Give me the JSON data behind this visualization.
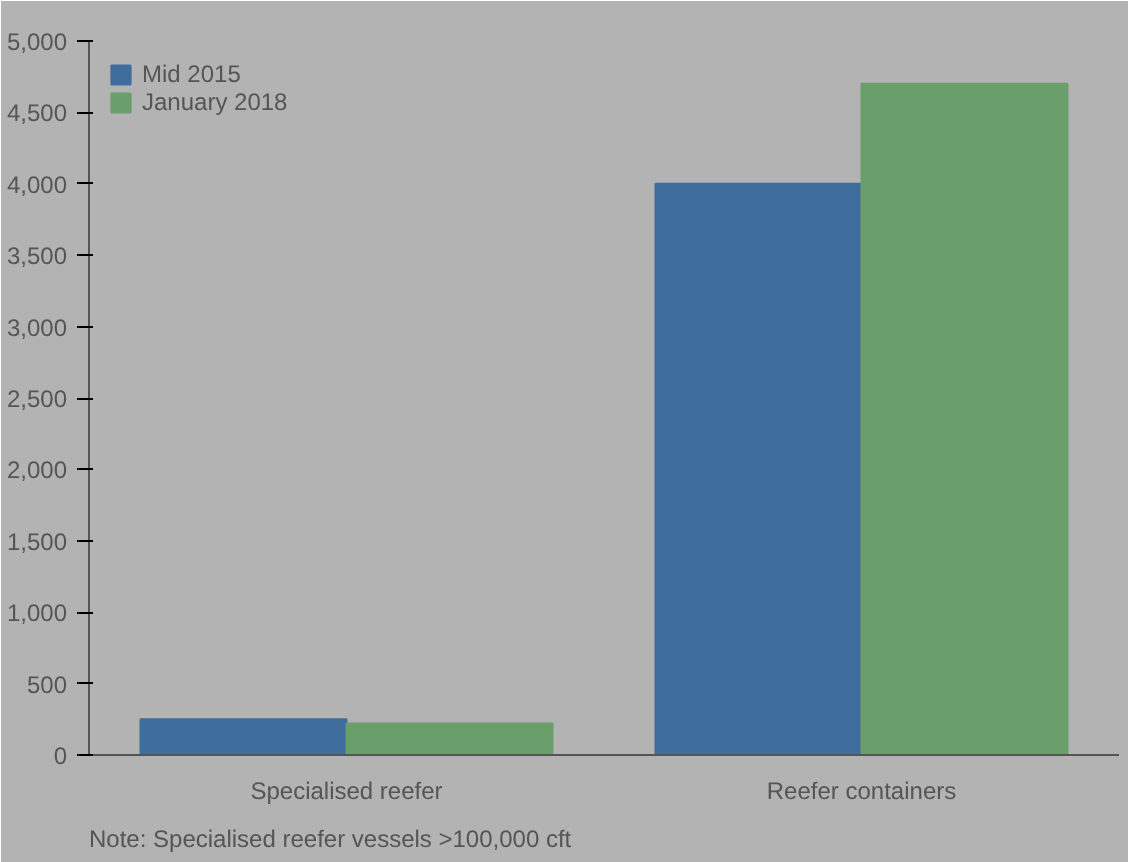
{
  "chart_data": {
    "type": "bar",
    "categories": [
      "Specialised reefer",
      "Reefer containers"
    ],
    "series": [
      {
        "name": "Mid 2015",
        "color": "#3f6e9e",
        "values": [
          250,
          4000
        ]
      },
      {
        "name": "January 2018",
        "color": "#6a9e6a",
        "values": [
          220,
          4700
        ]
      }
    ],
    "ylim": [
      0,
      5000
    ],
    "yticks": [
      {
        "value": 0,
        "label": "0"
      },
      {
        "value": 500,
        "label": "500"
      },
      {
        "value": 1000,
        "label": "1,000"
      },
      {
        "value": 1500,
        "label": "1,500"
      },
      {
        "value": 2000,
        "label": "2,000"
      },
      {
        "value": 2500,
        "label": "2,500"
      },
      {
        "value": 3000,
        "label": "3,000"
      },
      {
        "value": 3500,
        "label": "3,500"
      },
      {
        "value": 4000,
        "label": "4,000"
      },
      {
        "value": 4500,
        "label": "4,500"
      },
      {
        "value": 5000,
        "label": "5,000"
      }
    ],
    "grid": false,
    "legend": "top left",
    "annotations": [
      "Note: Specialised reefer vessels >100,000 cft"
    ]
  }
}
